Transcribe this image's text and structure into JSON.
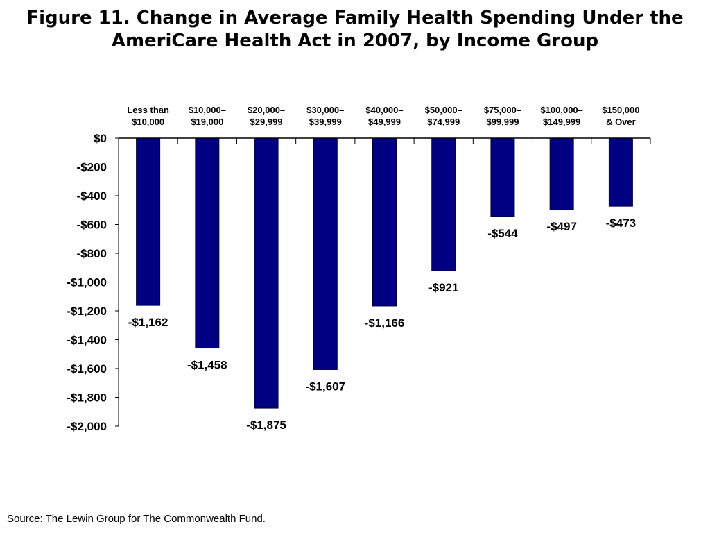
{
  "title_lines": [
    "Figure 11. Change in Average Family Health Spending Under the",
    "AmeriCare Health Act in 2007, by Income Group"
  ],
  "source": "Source: The Lewin Group for The Commonwealth Fund.",
  "colors": {
    "bar": "#000080",
    "bar_stroke": "#000033",
    "axis": "#000000"
  },
  "chart_data": {
    "type": "bar",
    "categories": [
      [
        "Less than",
        "$10,000"
      ],
      [
        "$10,000–",
        "$19,000"
      ],
      [
        "$20,000–",
        "$29,999"
      ],
      [
        "$30,000–",
        "$39,999"
      ],
      [
        "$40,000–",
        "$49,999"
      ],
      [
        "$50,000–",
        "$74,999"
      ],
      [
        "$75,000–",
        "$99,999"
      ],
      [
        "$100,000–",
        "$149,999"
      ],
      [
        "$150,000",
        "& Over"
      ]
    ],
    "values": [
      -1162,
      -1458,
      -1875,
      -1607,
      -1166,
      -921,
      -544,
      -497,
      -473
    ],
    "data_labels": [
      "-$1,162",
      "-$1,458",
      "-$1,875",
      "-$1,607",
      "-$1,166",
      "-$921",
      "-$544",
      "-$497",
      "-$473"
    ],
    "ylim": [
      -2000,
      0
    ],
    "yticks": [
      0,
      -200,
      -400,
      -600,
      -800,
      -1000,
      -1200,
      -1400,
      -1600,
      -1800,
      -2000
    ],
    "ytick_labels": [
      "$0",
      "-$200",
      "-$400",
      "-$600",
      "-$800",
      "-$1,000",
      "-$1,200",
      "-$1,400",
      "-$1,600",
      "-$1,800",
      "-$2,000"
    ],
    "category_axis_position": "top",
    "grid": false,
    "legend": "none"
  }
}
